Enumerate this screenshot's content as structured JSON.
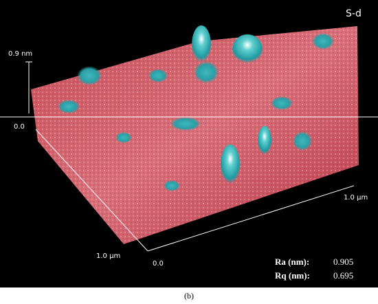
{
  "panel": {
    "label": "S-d"
  },
  "axes": {
    "z_max": "0.9 nm",
    "z_min": "0.0",
    "y_end": "1.0 µm",
    "origin": "0.0",
    "x_end": "1.0 µm"
  },
  "roughness": [
    {
      "label": "Ra (nm):",
      "value": "0.905"
    },
    {
      "label": "Rq (nm):",
      "value": "0.695"
    }
  ],
  "caption": "(b)"
}
